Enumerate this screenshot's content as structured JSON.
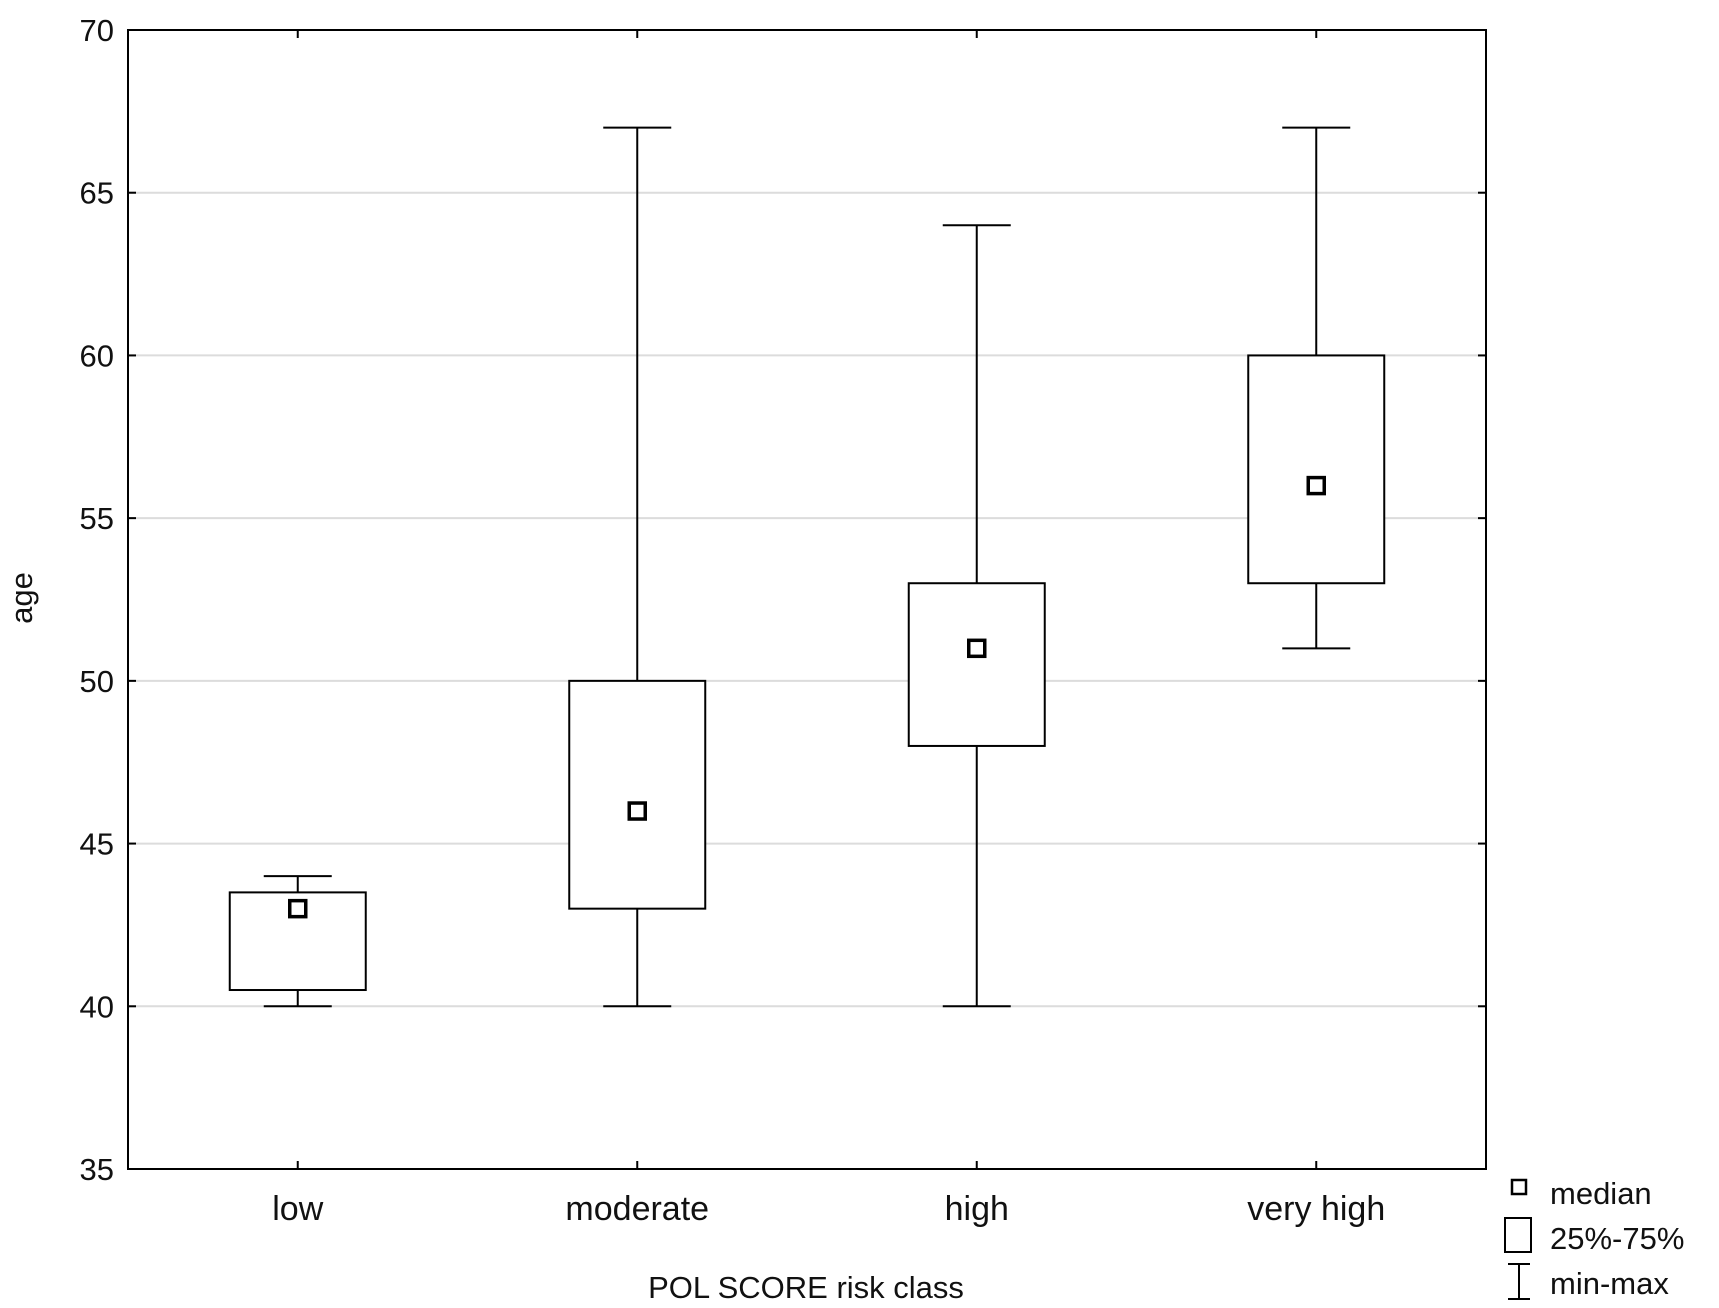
{
  "chart_data": {
    "type": "box",
    "title": "",
    "xlabel": "POL SCORE risk class",
    "ylabel": "age",
    "ylim": [
      35,
      70
    ],
    "yticks": [
      35,
      40,
      45,
      50,
      55,
      60,
      65,
      70
    ],
    "grid": "horizontal",
    "categories": [
      "low",
      "moderate",
      "high",
      "very high"
    ],
    "boxes": [
      {
        "category": "low",
        "min": 40,
        "q1": 40.5,
        "median": 43,
        "q3": 43.5,
        "max": 44
      },
      {
        "category": "moderate",
        "min": 40,
        "q1": 43,
        "median": 46,
        "q3": 50,
        "max": 67
      },
      {
        "category": "high",
        "min": 40,
        "q1": 48,
        "median": 51,
        "q3": 53,
        "max": 64
      },
      {
        "category": "very high",
        "min": 51,
        "q1": 53,
        "median": 56,
        "q3": 60,
        "max": 67
      }
    ],
    "legend": {
      "position": "bottom-right",
      "items": [
        {
          "symbol": "median-square",
          "label": "median"
        },
        {
          "symbol": "box",
          "label": "25%-75%"
        },
        {
          "symbol": "whisker",
          "label": "min-max"
        }
      ]
    }
  },
  "colors": {
    "stroke": "#000000",
    "grid": "#dcdcdc",
    "background": "#ffffff"
  }
}
